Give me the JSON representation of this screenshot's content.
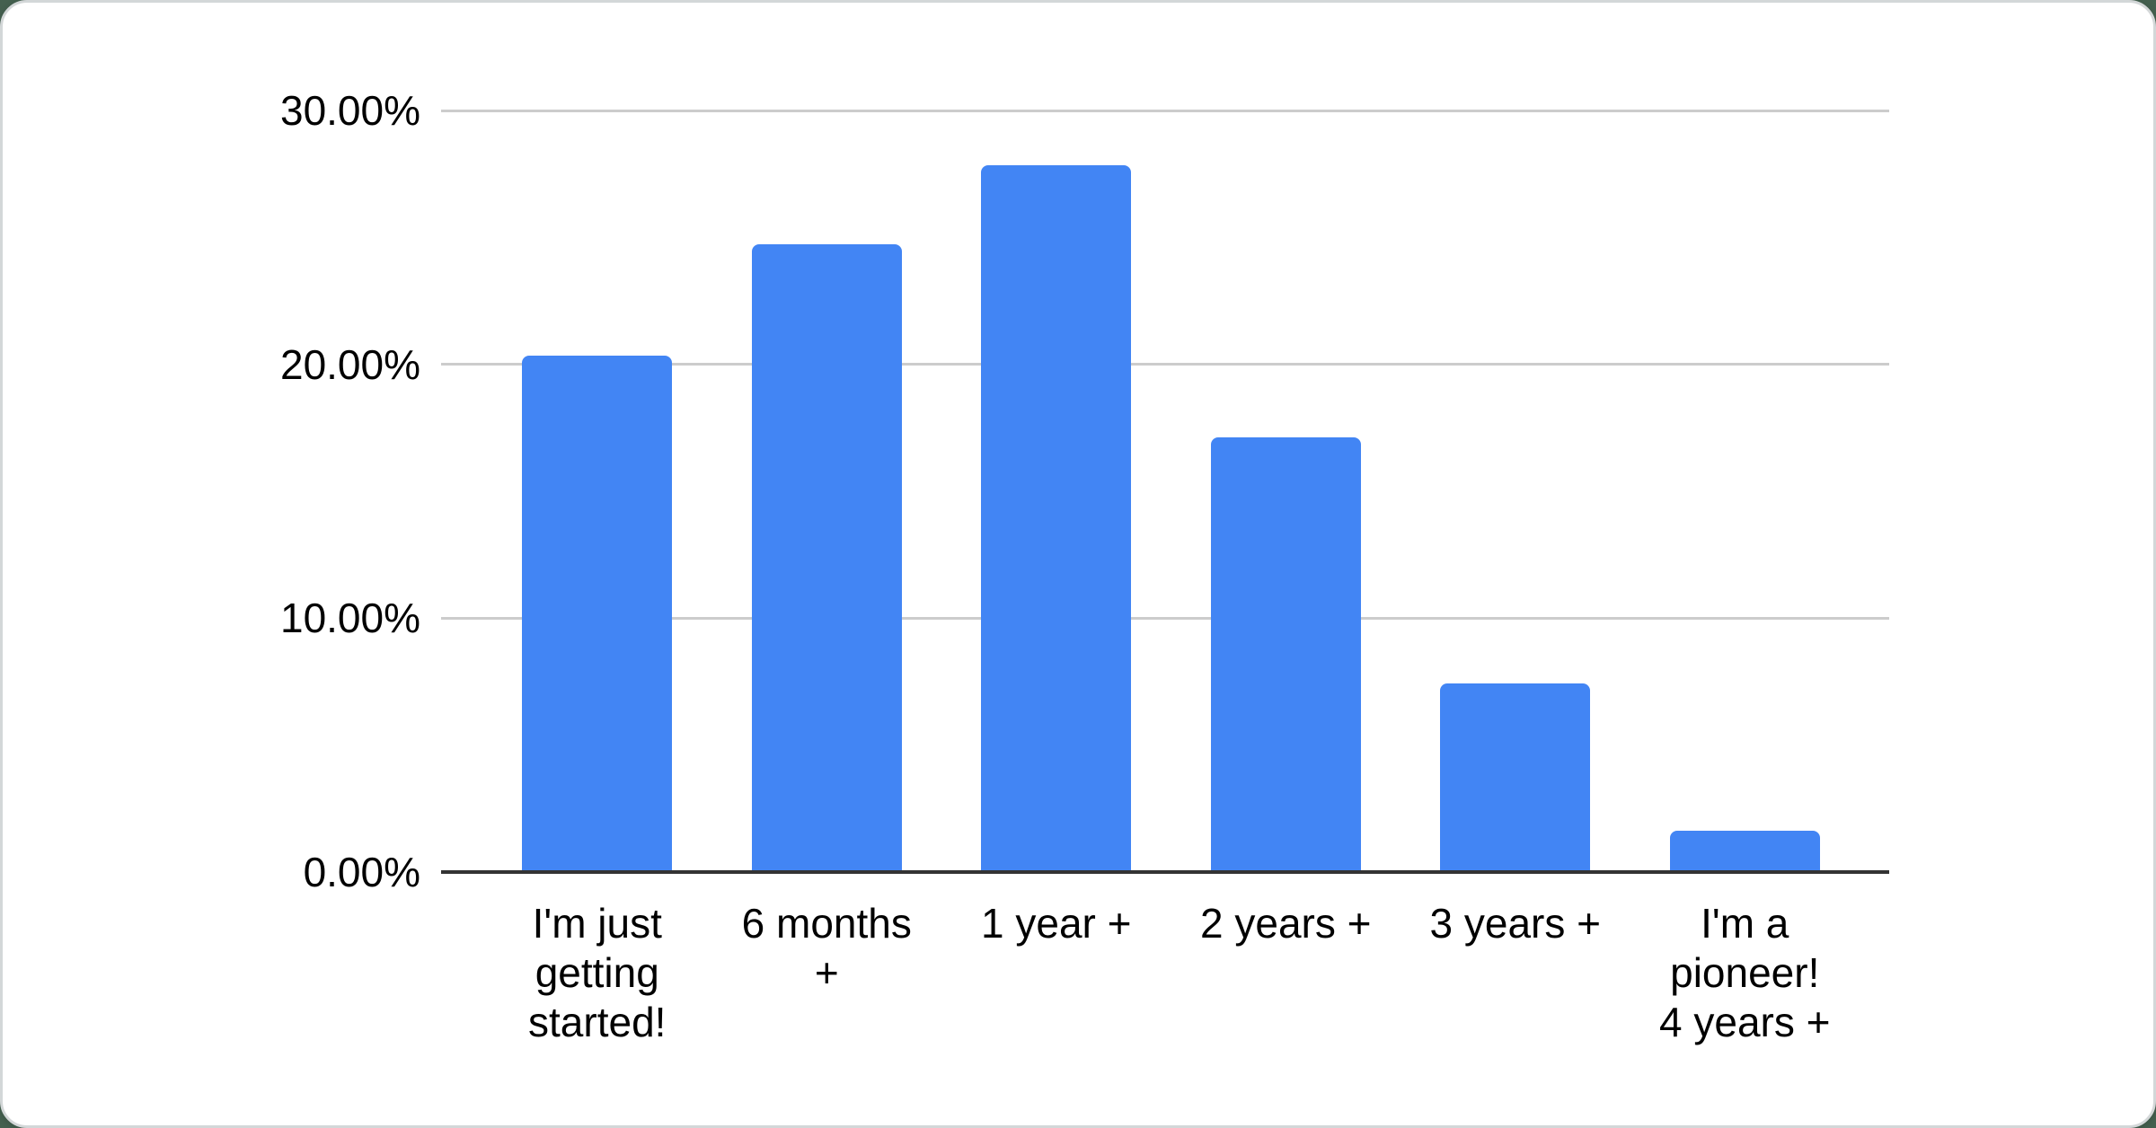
{
  "page": {
    "background_color": "#44604f"
  },
  "card": {
    "background_color": "#ffffff",
    "border_color": "#d3d7d8"
  },
  "chart_data": {
    "type": "bar",
    "title": "",
    "xlabel": "",
    "ylabel": "",
    "categories": [
      "I'm just getting started!",
      "6 months +",
      "1 year +",
      "2 years +",
      "3 years +",
      "I'm a pioneer! 4 years +"
    ],
    "values": [
      20.4,
      24.8,
      27.9,
      17.2,
      7.5,
      1.7
    ],
    "ylim": [
      0,
      30
    ],
    "y_axis": {
      "tick_values": [
        0,
        10,
        20,
        30
      ],
      "tick_labels": [
        "0.00%",
        "10.00%",
        "20.00%",
        "30.00%"
      ]
    },
    "x_axis": {
      "label_lines": [
        [
          "I'm just",
          "getting",
          "started!"
        ],
        [
          "6 months",
          "+"
        ],
        [
          "1 year +"
        ],
        [
          "2 years +"
        ],
        [
          "3 years +"
        ],
        [
          "I'm a",
          "pioneer!",
          "4 years +"
        ]
      ]
    },
    "grid": true,
    "legend_position": "none",
    "colors": {
      "bar": "#4285F4",
      "gridline": "#cccccc",
      "axis_line": "#333333",
      "label_text": "#000000"
    }
  }
}
